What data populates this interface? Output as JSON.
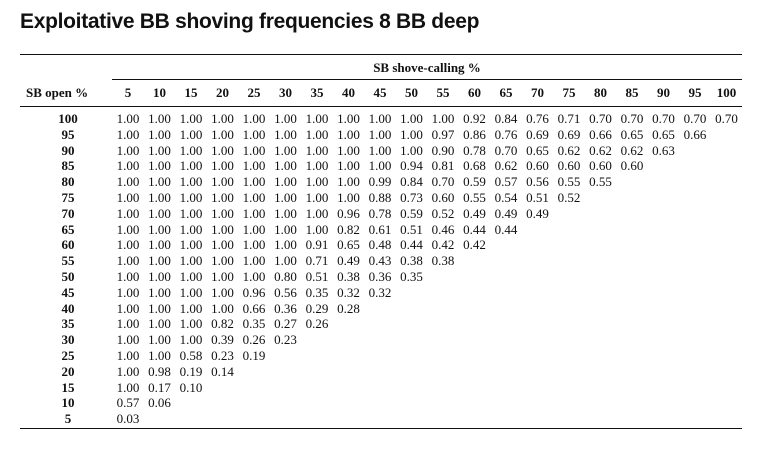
{
  "title": "Exploitative BB shoving frequencies 8 BB deep",
  "table": {
    "group_header": "SB shove-calling %",
    "row_header": "SB open %",
    "columns": [
      "5",
      "10",
      "15",
      "20",
      "25",
      "30",
      "35",
      "40",
      "45",
      "50",
      "55",
      "60",
      "65",
      "70",
      "75",
      "80",
      "85",
      "90",
      "95",
      "100"
    ],
    "rows": [
      {
        "label": "100",
        "cells": [
          "1.00",
          "1.00",
          "1.00",
          "1.00",
          "1.00",
          "1.00",
          "1.00",
          "1.00",
          "1.00",
          "1.00",
          "1.00",
          "0.92",
          "0.84",
          "0.76",
          "0.71",
          "0.70",
          "0.70",
          "0.70",
          "0.70",
          "0.70"
        ]
      },
      {
        "label": "95",
        "cells": [
          "1.00",
          "1.00",
          "1.00",
          "1.00",
          "1.00",
          "1.00",
          "1.00",
          "1.00",
          "1.00",
          "1.00",
          "0.97",
          "0.86",
          "0.76",
          "0.69",
          "0.69",
          "0.66",
          "0.65",
          "0.65",
          "0.66"
        ]
      },
      {
        "label": "90",
        "cells": [
          "1.00",
          "1.00",
          "1.00",
          "1.00",
          "1.00",
          "1.00",
          "1.00",
          "1.00",
          "1.00",
          "1.00",
          "0.90",
          "0.78",
          "0.70",
          "0.65",
          "0.62",
          "0.62",
          "0.62",
          "0.63"
        ]
      },
      {
        "label": "85",
        "cells": [
          "1.00",
          "1.00",
          "1.00",
          "1.00",
          "1.00",
          "1.00",
          "1.00",
          "1.00",
          "1.00",
          "0.94",
          "0.81",
          "0.68",
          "0.62",
          "0.60",
          "0.60",
          "0.60",
          "0.60"
        ]
      },
      {
        "label": "80",
        "cells": [
          "1.00",
          "1.00",
          "1.00",
          "1.00",
          "1.00",
          "1.00",
          "1.00",
          "1.00",
          "0.99",
          "0.84",
          "0.70",
          "0.59",
          "0.57",
          "0.56",
          "0.55",
          "0.55"
        ]
      },
      {
        "label": "75",
        "cells": [
          "1.00",
          "1.00",
          "1.00",
          "1.00",
          "1.00",
          "1.00",
          "1.00",
          "1.00",
          "0.88",
          "0.73",
          "0.60",
          "0.55",
          "0.54",
          "0.51",
          "0.52"
        ]
      },
      {
        "label": "70",
        "cells": [
          "1.00",
          "1.00",
          "1.00",
          "1.00",
          "1.00",
          "1.00",
          "1.00",
          "0.96",
          "0.78",
          "0.59",
          "0.52",
          "0.49",
          "0.49",
          "0.49"
        ]
      },
      {
        "label": "65",
        "cells": [
          "1.00",
          "1.00",
          "1.00",
          "1.00",
          "1.00",
          "1.00",
          "1.00",
          "0.82",
          "0.61",
          "0.51",
          "0.46",
          "0.44",
          "0.44"
        ]
      },
      {
        "label": "60",
        "cells": [
          "1.00",
          "1.00",
          "1.00",
          "1.00",
          "1.00",
          "1.00",
          "0.91",
          "0.65",
          "0.48",
          "0.44",
          "0.42",
          "0.42"
        ]
      },
      {
        "label": "55",
        "cells": [
          "1.00",
          "1.00",
          "1.00",
          "1.00",
          "1.00",
          "1.00",
          "0.71",
          "0.49",
          "0.43",
          "0.38",
          "0.38"
        ]
      },
      {
        "label": "50",
        "cells": [
          "1.00",
          "1.00",
          "1.00",
          "1.00",
          "1.00",
          "0.80",
          "0.51",
          "0.38",
          "0.36",
          "0.35"
        ]
      },
      {
        "label": "45",
        "cells": [
          "1.00",
          "1.00",
          "1.00",
          "1.00",
          "0.96",
          "0.56",
          "0.35",
          "0.32",
          "0.32"
        ]
      },
      {
        "label": "40",
        "cells": [
          "1.00",
          "1.00",
          "1.00",
          "1.00",
          "0.66",
          "0.36",
          "0.29",
          "0.28"
        ]
      },
      {
        "label": "35",
        "cells": [
          "1.00",
          "1.00",
          "1.00",
          "0.82",
          "0.35",
          "0.27",
          "0.26"
        ]
      },
      {
        "label": "30",
        "cells": [
          "1.00",
          "1.00",
          "1.00",
          "0.39",
          "0.26",
          "0.23"
        ]
      },
      {
        "label": "25",
        "cells": [
          "1.00",
          "1.00",
          "0.58",
          "0.23",
          "0.19"
        ]
      },
      {
        "label": "20",
        "cells": [
          "1.00",
          "0.98",
          "0.19",
          "0.14"
        ]
      },
      {
        "label": "15",
        "cells": [
          "1.00",
          "0.17",
          "0.10"
        ]
      },
      {
        "label": "10",
        "cells": [
          "0.57",
          "0.06"
        ]
      },
      {
        "label": "5",
        "cells": [
          "0.03"
        ]
      }
    ]
  }
}
